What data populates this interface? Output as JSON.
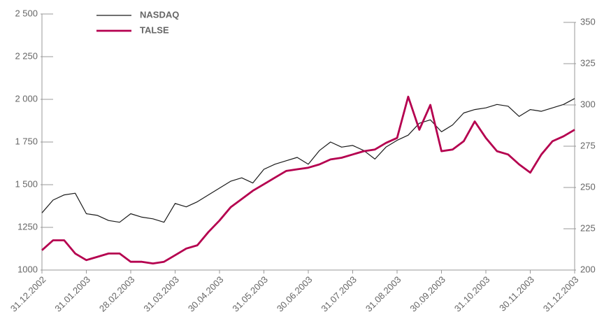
{
  "chart_data": {
    "type": "line",
    "categories": [
      "31.12.2002",
      null,
      null,
      null,
      "31.01.2003",
      null,
      null,
      null,
      "28.02.2003",
      null,
      null,
      null,
      "31.03.2003",
      null,
      null,
      null,
      "30.04.2003",
      null,
      null,
      null,
      "31.05.2003",
      null,
      null,
      null,
      "30.06.2003",
      null,
      null,
      null,
      "31.07.2003",
      null,
      null,
      null,
      "31.08.2003",
      null,
      null,
      null,
      "30.09.2003",
      null,
      null,
      null,
      "31.10.2003",
      null,
      null,
      null,
      "30.11.2003",
      null,
      null,
      null,
      "31.12.2003"
    ],
    "series": [
      {
        "name": "NASDAQ",
        "color": "#1a1a1a",
        "values": [
          1335,
          1410,
          1440,
          1450,
          1330,
          1320,
          1290,
          1280,
          1330,
          1310,
          1300,
          1280,
          1390,
          1370,
          1400,
          1440,
          1480,
          1520,
          1540,
          1510,
          1590,
          1620,
          1640,
          1660,
          1620,
          1700,
          1750,
          1720,
          1730,
          1700,
          1650,
          1720,
          1760,
          1790,
          1860,
          1880,
          1810,
          1850,
          1920,
          1940,
          1950,
          1970,
          1960,
          1900,
          1940,
          1930,
          1950,
          1970,
          2005
        ]
      },
      {
        "name": "TALSE",
        "color": "#b5004f",
        "axis": "y2",
        "values": [
          212,
          218,
          218,
          210,
          206,
          208,
          210,
          210,
          205,
          205,
          204,
          205,
          209,
          213,
          215,
          223,
          230,
          238,
          243,
          248,
          252,
          256,
          260,
          261,
          262,
          264,
          267,
          268,
          270,
          272,
          273,
          277,
          280,
          305,
          285,
          300,
          272,
          273,
          278,
          290,
          280,
          272,
          270,
          264,
          259,
          270,
          278,
          281,
          285
        ]
      }
    ],
    "ylim": [
      1000,
      2500
    ],
    "yticks": [
      1000,
      1250,
      {
        "value": 1500,
        "label": "1 500"
      },
      {
        "value": 1750,
        "label": "1 750"
      },
      {
        "value": 2000,
        "label": "2 000"
      },
      {
        "value": 2250,
        "label": "2 250"
      },
      {
        "value": 2500,
        "label": "2 500"
      }
    ],
    "y2lim": [
      200,
      350
    ],
    "y2ticks": [
      200,
      225,
      250,
      275,
      300,
      325,
      350
    ],
    "legend": "upper left"
  }
}
